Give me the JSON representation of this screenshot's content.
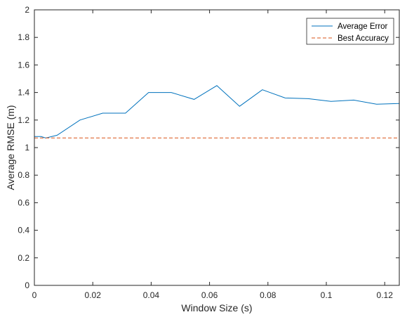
{
  "chart_data": {
    "type": "line",
    "xlabel": "Window Size (s)",
    "ylabel": "Average RMSE (m)",
    "xlim": [
      0,
      0.125
    ],
    "ylim": [
      0,
      2
    ],
    "xticks": [
      "0",
      "0.02",
      "0.04",
      "0.06",
      "0.08",
      "0.1",
      "0.12"
    ],
    "yticks": [
      "0",
      "0.2",
      "0.4",
      "0.6",
      "0.8",
      "1",
      "1.2",
      "1.4",
      "1.6",
      "1.8",
      "2"
    ],
    "grid": false,
    "legend_position": "top-right",
    "series": [
      {
        "name": "Average Error",
        "style": "solid",
        "color": "#0072BD",
        "x": [
          0,
          0.0023,
          0.0039,
          0.0078,
          0.0156,
          0.0234,
          0.0312,
          0.0391,
          0.0469,
          0.0547,
          0.0625,
          0.0703,
          0.0781,
          0.0859,
          0.0938,
          0.1016,
          0.1094,
          0.1172,
          0.125
        ],
        "y": [
          1.08,
          1.08,
          1.07,
          1.09,
          1.2,
          1.25,
          1.25,
          1.4,
          1.4,
          1.35,
          1.45,
          1.3,
          1.42,
          1.36,
          1.355,
          1.335,
          1.345,
          1.315,
          1.32
        ]
      },
      {
        "name": "Best Accuracy",
        "style": "dashed",
        "color": "#D95319",
        "x": [
          0,
          0.125
        ],
        "y": [
          1.07,
          1.07
        ]
      }
    ]
  }
}
